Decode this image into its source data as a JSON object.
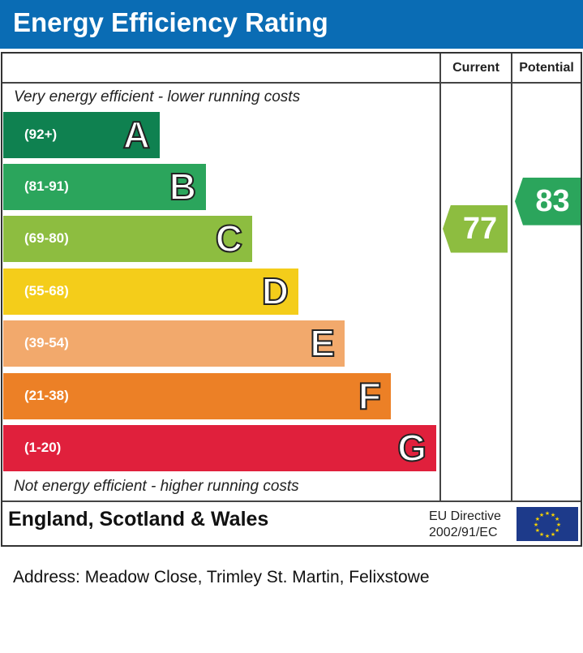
{
  "chart_data": {
    "type": "bar",
    "title": "Energy Efficiency Rating",
    "columns": [
      "Current",
      "Potential"
    ],
    "top_note": "Very energy efficient - lower running costs",
    "bottom_note": "Not energy efficient - higher running costs",
    "bands": [
      {
        "letter": "A",
        "range": "(92+)",
        "min": 92,
        "max": 100,
        "color": "#0f8150"
      },
      {
        "letter": "B",
        "range": "(81-91)",
        "min": 81,
        "max": 91,
        "color": "#2ba55c"
      },
      {
        "letter": "C",
        "range": "(69-80)",
        "min": 69,
        "max": 80,
        "color": "#8dbd40"
      },
      {
        "letter": "D",
        "range": "(55-68)",
        "min": 55,
        "max": 68,
        "color": "#f4cd1a"
      },
      {
        "letter": "E",
        "range": "(39-54)",
        "min": 39,
        "max": 54,
        "color": "#f2a96c"
      },
      {
        "letter": "F",
        "range": "(21-38)",
        "min": 21,
        "max": 38,
        "color": "#ec8026"
      },
      {
        "letter": "G",
        "range": "(1-20)",
        "min": 1,
        "max": 20,
        "color": "#e0203c"
      }
    ],
    "current": {
      "value": 77,
      "label": "77",
      "color": "#8dbd40"
    },
    "potential": {
      "value": 83,
      "label": "83",
      "color": "#2ba55c"
    }
  },
  "footer": {
    "region": "England, Scotland & Wales",
    "directive_line1": "EU Directive",
    "directive_line2": "2002/91/EC",
    "flag": "eu-flag-icon"
  },
  "address": "Address: Meadow Close, Trimley St. Martin, Felixstowe"
}
